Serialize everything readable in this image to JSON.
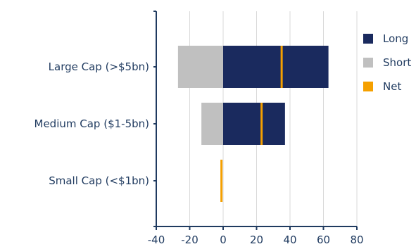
{
  "chart_data": {
    "type": "bar",
    "orientation": "horizontal",
    "categories": [
      "Large Cap (>$5bn)",
      "Medium Cap ($1-5bn)",
      "Small Cap (<$1bn)"
    ],
    "series": [
      {
        "name": "Long",
        "values": [
          63,
          37,
          0
        ],
        "color": "#1a2a5e"
      },
      {
        "name": "Short",
        "values": [
          -27,
          -13,
          0
        ],
        "color": "#c0c0c0"
      },
      {
        "name": "Net",
        "values": [
          35,
          23,
          -1
        ],
        "color": "#f5a000",
        "style": "marker"
      }
    ],
    "xlim": [
      -40,
      80
    ],
    "xticks": [
      -40,
      -20,
      0,
      20,
      40,
      60,
      80
    ],
    "title": "",
    "xlabel": "",
    "ylabel": "",
    "grid": true,
    "legend_position": "right"
  }
}
